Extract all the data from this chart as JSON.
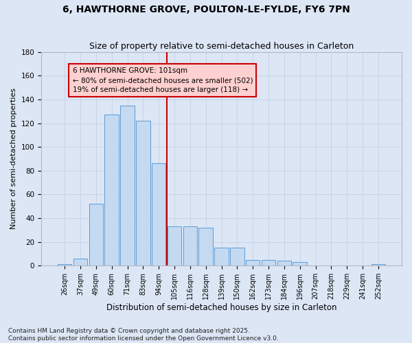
{
  "title": "6, HAWTHORNE GROVE, POULTON-LE-FYLDE, FY6 7PN",
  "subtitle": "Size of property relative to semi-detached houses in Carleton",
  "xlabel": "Distribution of semi-detached houses by size in Carleton",
  "ylabel": "Number of semi-detached properties",
  "categories": [
    "26sqm",
    "37sqm",
    "49sqm",
    "60sqm",
    "71sqm",
    "83sqm",
    "94sqm",
    "105sqm",
    "116sqm",
    "128sqm",
    "139sqm",
    "150sqm",
    "162sqm",
    "173sqm",
    "184sqm",
    "196sqm",
    "207sqm",
    "218sqm",
    "229sqm",
    "241sqm",
    "252sqm"
  ],
  "values": [
    1,
    6,
    52,
    127,
    135,
    122,
    86,
    33,
    33,
    32,
    15,
    15,
    5,
    5,
    4,
    3,
    0,
    0,
    0,
    0,
    1
  ],
  "bar_color": "#c5d9f1",
  "bar_edge_color": "#5b9bd5",
  "grid_color": "#c8d4e8",
  "background_color": "#dce6f5",
  "vline_x_index": 7,
  "vline_color": "#cc0000",
  "annotation_text": "6 HAWTHORNE GROVE: 101sqm\n← 80% of semi-detached houses are smaller (502)\n19% of semi-detached houses are larger (118) →",
  "annotation_box_facecolor": "#ffd0d0",
  "annotation_box_edge": "#cc0000",
  "ylim": [
    0,
    180
  ],
  "yticks": [
    0,
    20,
    40,
    60,
    80,
    100,
    120,
    140,
    160,
    180
  ],
  "footer": "Contains HM Land Registry data © Crown copyright and database right 2025.\nContains public sector information licensed under the Open Government Licence v3.0.",
  "title_fontsize": 10,
  "subtitle_fontsize": 9,
  "ylabel_fontsize": 8,
  "xlabel_fontsize": 8.5,
  "tick_fontsize": 7,
  "annotation_fontsize": 7.5,
  "footer_fontsize": 6.5
}
